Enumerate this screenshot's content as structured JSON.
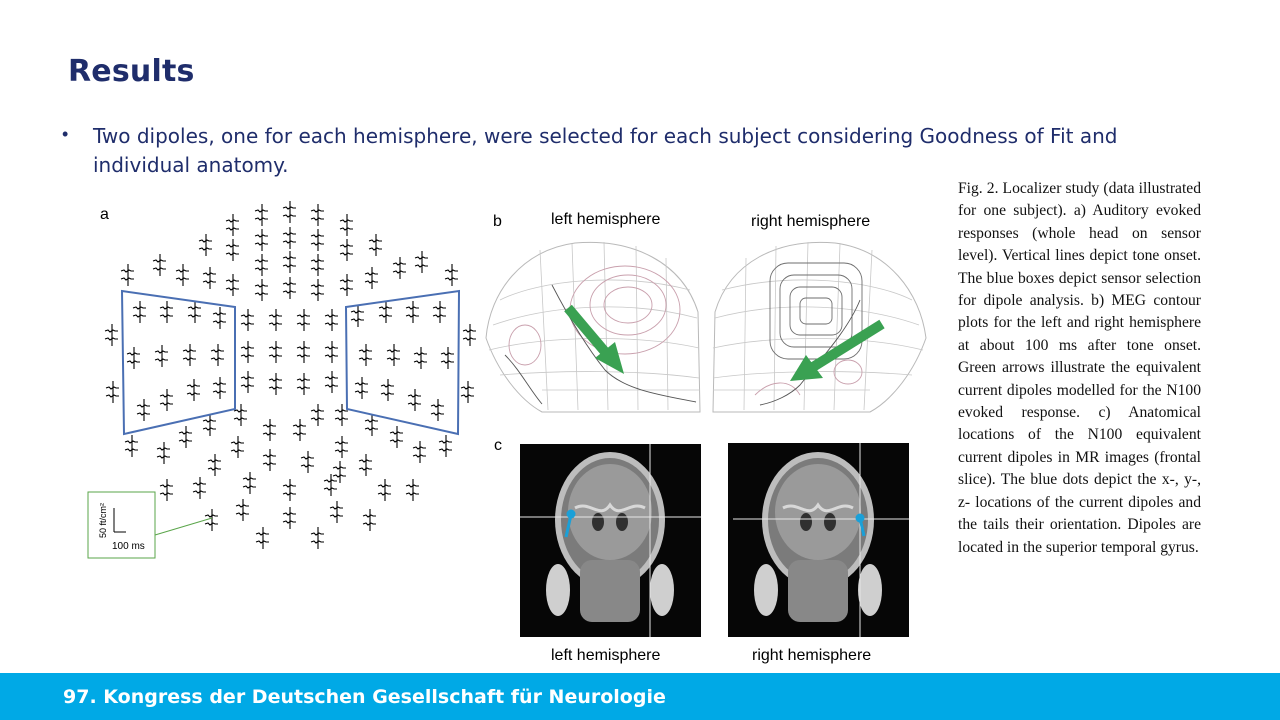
{
  "slide": {
    "title": "Results",
    "bullet": "Two dipoles, one for each hemisphere, were selected for each subject considering Goodness of Fit and individual anatomy."
  },
  "caption": "Fig. 2. Localizer study (data illustrated for one subject). a) Auditory evoked responses (whole head on sensor level). Vertical lines depict tone onset. The blue boxes depict sensor selection for dipole analysis.  b) MEG contour plots for the left and right hemisphere at about 100 ms after tone onset. Green arrows illustrate the equivalent current dipoles modelled for the N100 evoked response. c) Anatomical locations of the N100 equivalent current dipoles in MR images (frontal slice). The blue dots depict the x-, y-, z- locations of the current dipoles and the tails their orientation. Dipoles are located in the superior temporal gyrus.",
  "figure": {
    "panel_a": {
      "label": "a",
      "scale_y": "50 ft/cm²",
      "scale_x": "100 ms"
    },
    "panel_b": {
      "label": "b",
      "left_title": "left hemisphere",
      "right_title": "right hemisphere"
    },
    "panel_c": {
      "label": "c",
      "left_title": "left hemisphere",
      "right_title": "right hemisphere"
    },
    "colors": {
      "selection_box": "#4a6fb3",
      "arrow": "#3aa152",
      "dipole": "#1aa0d8",
      "inset_border": "#5aa54a"
    }
  },
  "footer": {
    "text": "97. Kongress der Deutschen Gesellschaft für Neurologie"
  }
}
